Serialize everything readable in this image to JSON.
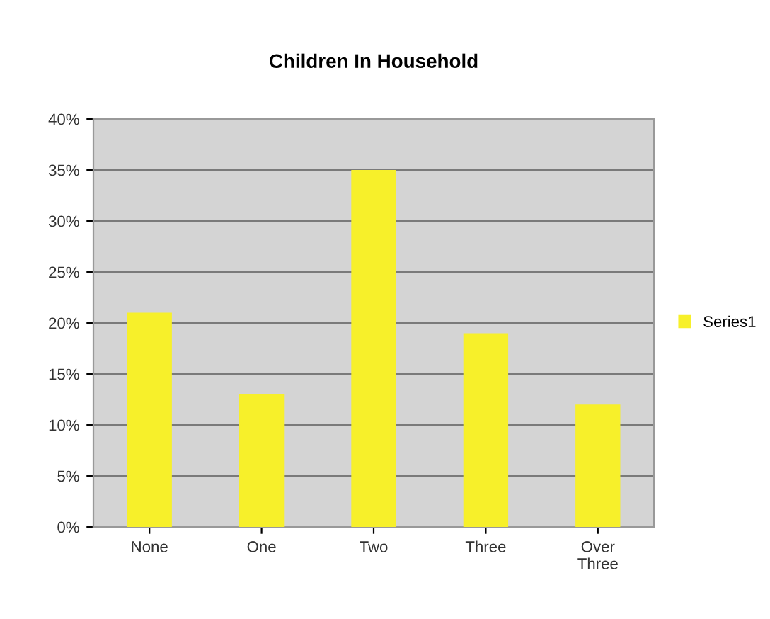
{
  "chart_data": {
    "type": "bar",
    "title": "Children In Household",
    "categories": [
      "None",
      "One",
      "Two",
      "Three",
      "Over\nThree"
    ],
    "series": [
      {
        "name": "Series1",
        "color": "#f7f02a",
        "values": [
          21,
          13,
          35,
          19,
          12
        ]
      }
    ],
    "ylim": [
      0,
      40
    ],
    "yticks": [
      {
        "value": 0,
        "label": "0%"
      },
      {
        "value": 5,
        "label": "5%"
      },
      {
        "value": 10,
        "label": "10%"
      },
      {
        "value": 15,
        "label": "15%"
      },
      {
        "value": 20,
        "label": "20%"
      },
      {
        "value": 25,
        "label": "25%"
      },
      {
        "value": 30,
        "label": "30%"
      },
      {
        "value": 35,
        "label": "35%"
      },
      {
        "value": 40,
        "label": "40%"
      }
    ],
    "grid": "y",
    "legend": "right"
  }
}
